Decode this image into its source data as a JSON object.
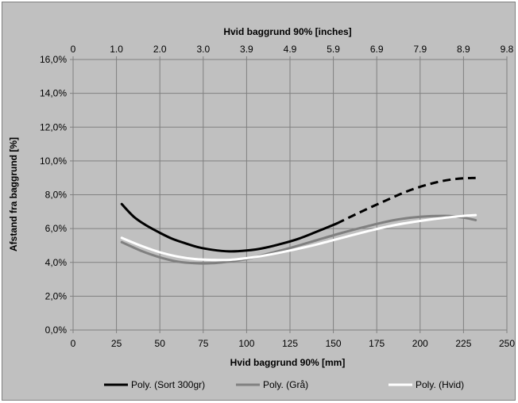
{
  "chart_data": {
    "type": "line",
    "title": "",
    "xlabel": "Hvid baggrund 90% [mm]",
    "x2label": "Hvid baggrund 90% [inches]",
    "ylabel": "Afstand fra baggrund [%]",
    "xlim": [
      0,
      250
    ],
    "ylim": [
      0,
      0.16
    ],
    "x_ticks": [
      "0",
      "25",
      "50",
      "75",
      "100",
      "125",
      "150",
      "175",
      "200",
      "225",
      "250"
    ],
    "x2_ticks": [
      "0",
      "1.0",
      "2.0",
      "3.0",
      "3.9",
      "4.9",
      "5.9",
      "6.9",
      "7.9",
      "8.9",
      "9.8"
    ],
    "y_ticks": [
      "0,0%",
      "2,0%",
      "4,0%",
      "6,0%",
      "8,0%",
      "10,0%",
      "12,0%",
      "14,0%",
      "16,0%"
    ],
    "grid": true,
    "legend_position": "bottom",
    "series": [
      {
        "name": "Poly. (Sort 300gr)",
        "color": "#000000",
        "solid_until_x": 152,
        "x": [
          28,
          35,
          42,
          50,
          57,
          64,
          72,
          80,
          90,
          100,
          110,
          120,
          130,
          140,
          152,
          165,
          180,
          195,
          210,
          222,
          232
        ],
        "y": [
          0.0745,
          0.067,
          0.062,
          0.0575,
          0.054,
          0.0515,
          0.049,
          0.0475,
          0.0465,
          0.047,
          0.0485,
          0.051,
          0.054,
          0.058,
          0.063,
          0.0695,
          0.0765,
          0.083,
          0.0875,
          0.0895,
          0.09
        ]
      },
      {
        "name": "Poly. (Grå)",
        "color": "#808080",
        "x": [
          28,
          40,
          50,
          60,
          70,
          80,
          90,
          100,
          110,
          125,
          140,
          155,
          170,
          185,
          200,
          215,
          225,
          232
        ],
        "y": [
          0.052,
          0.0465,
          0.043,
          0.0405,
          0.0395,
          0.0395,
          0.0405,
          0.042,
          0.0445,
          0.0485,
          0.053,
          0.0575,
          0.0615,
          0.065,
          0.067,
          0.0675,
          0.0665,
          0.065
        ]
      },
      {
        "name": "Poly. (Hvid)",
        "color": "#ffffff",
        "x": [
          28,
          40,
          50,
          60,
          70,
          80,
          90,
          100,
          110,
          125,
          140,
          155,
          170,
          185,
          200,
          215,
          225,
          232
        ],
        "y": [
          0.0545,
          0.0495,
          0.046,
          0.0435,
          0.042,
          0.0415,
          0.0415,
          0.0425,
          0.044,
          0.047,
          0.0505,
          0.0545,
          0.0585,
          0.062,
          0.0645,
          0.0665,
          0.0675,
          0.068
        ]
      }
    ]
  }
}
